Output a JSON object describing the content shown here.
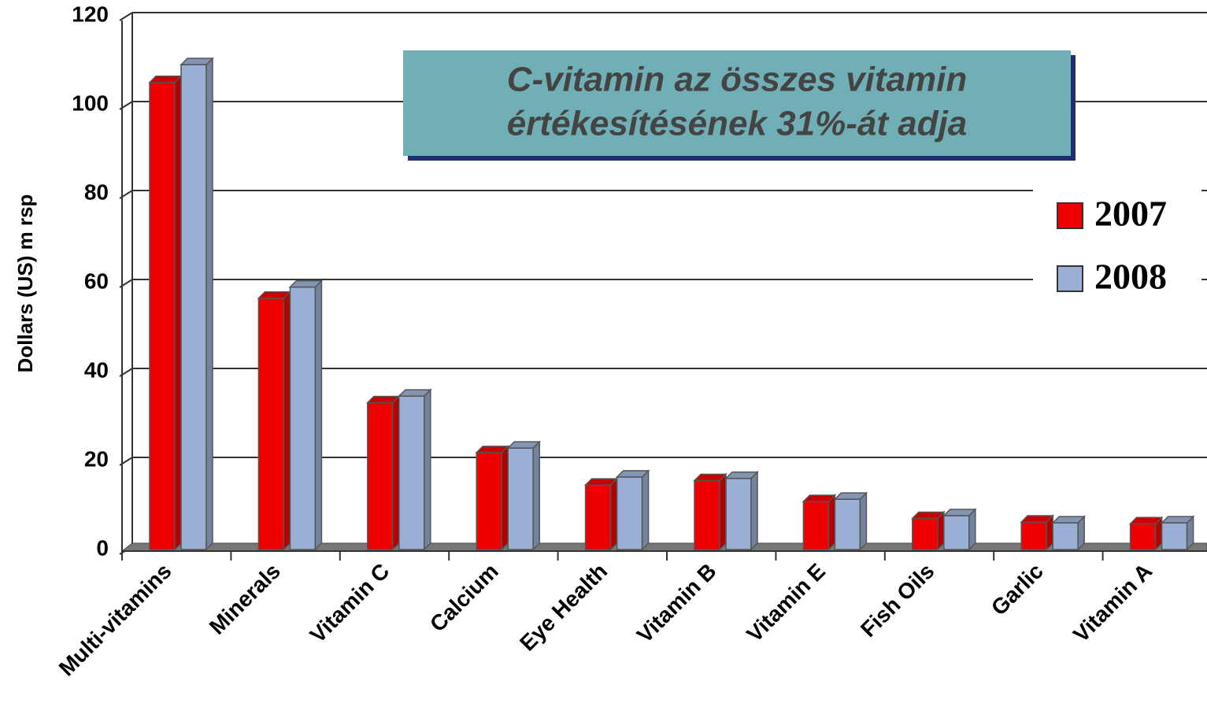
{
  "chart_data": {
    "type": "bar",
    "y_label": "Dollars (US) m rsp",
    "annotation": [
      "C-vitamin az összes vitamin",
      "értékesítésének 31%-át adja"
    ],
    "categories": [
      "Multi-vitamins",
      "Minerals",
      "Vitamin C",
      "Calcium",
      "Eye Health",
      "Vitamin B",
      "Vitamin E",
      "Fish Oils",
      "Garlic",
      "Vitamin A"
    ],
    "series": [
      {
        "name": "2007",
        "color": "#ee0000",
        "values": [
          105,
          56.5,
          33,
          21.8,
          14.5,
          15.5,
          10.8,
          7,
          6.2,
          5.8
        ]
      },
      {
        "name": "2008",
        "color": "#99afd3",
        "values": [
          109,
          59,
          34.5,
          22.8,
          16.3,
          16,
          11.3,
          7.6,
          6,
          6
        ]
      }
    ],
    "ylim": [
      0,
      120
    ],
    "yticks": [
      0,
      20,
      40,
      60,
      80,
      100,
      120
    ],
    "grid": true,
    "legend": "right"
  }
}
